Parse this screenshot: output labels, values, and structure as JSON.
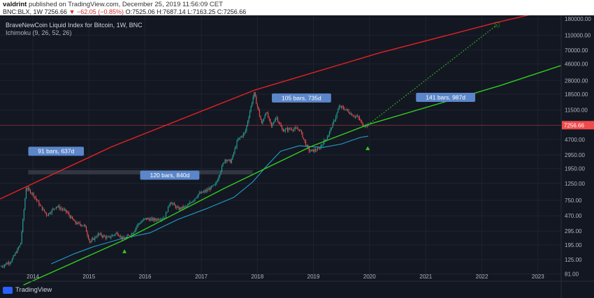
{
  "header": {
    "publisher": "valdrint",
    "published_text": "published on TradingView.com, December 25, 2019 11:56:09 CET",
    "symbol": "BNC:BLX, 1W",
    "last": "7256.66",
    "change": "▼ −62.05 (−0.85%)",
    "o": "O:7525.06",
    "h": "H:7687.14",
    "l": "L:7163.25",
    "c": "C:7256.66"
  },
  "legend": {
    "line1": "BraveNewCoin Liquid Index for Bitcoin, 1W, BNC",
    "line2": "Ichimoku (9, 26, 52, 26)"
  },
  "footer": {
    "brand": "TradingView"
  },
  "colors": {
    "background": "#131722",
    "candle_up": "#26a69a",
    "candle_down": "#ef5350",
    "red_trendline": "#e52222",
    "green_trendline": "#33cc1f",
    "ichimoku_line": "#1f9fc9",
    "annotation_bg": "#5b86c9",
    "price_tag": "#f04b4b"
  },
  "chart_data": {
    "type": "candlestick",
    "y_scale": "log",
    "ylim": [
      65,
      200000
    ],
    "xlim": [
      "2013-06-01",
      "2023-06-01"
    ],
    "x_tick_labels": [
      "2014",
      "2015",
      "2016",
      "2017",
      "2018",
      "2019",
      "2020",
      "2021",
      "2022",
      "2023"
    ],
    "y_tick_labels": [
      {
        "label": "180000.00",
        "value": 180000
      },
      {
        "label": "110000.00",
        "value": 110000
      },
      {
        "label": "70000.00",
        "value": 70000
      },
      {
        "label": "46000.00",
        "value": 46000
      },
      {
        "label": "28000.00",
        "value": 28000
      },
      {
        "label": "18500.00",
        "value": 18500
      },
      {
        "label": "11500.00",
        "value": 11500
      },
      {
        "label": "4700.00",
        "value": 4700
      },
      {
        "label": "2950.00",
        "value": 2950
      },
      {
        "label": "1950.00",
        "value": 1950
      },
      {
        "label": "1250.00",
        "value": 1250
      },
      {
        "label": "750.00",
        "value": 750
      },
      {
        "label": "470.00",
        "value": 470
      },
      {
        "label": "295.00",
        "value": 295
      },
      {
        "label": "195.00",
        "value": 195
      },
      {
        "label": "125.00",
        "value": 125
      },
      {
        "label": "81.00",
        "value": 81
      }
    ],
    "last_price": {
      "label": "7256.66",
      "value": 7256.66
    },
    "price_keypoints": [
      [
        "2013-06-10",
        100
      ],
      [
        "2013-08-20",
        120
      ],
      [
        "2013-10-20",
        200
      ],
      [
        "2013-11-25",
        1100
      ],
      [
        "2014-01-10",
        900
      ],
      [
        "2014-02-20",
        650
      ],
      [
        "2014-04-10",
        480
      ],
      [
        "2014-06-10",
        630
      ],
      [
        "2014-08-10",
        540
      ],
      [
        "2014-10-10",
        380
      ],
      [
        "2014-12-10",
        350
      ],
      [
        "2015-01-15",
        210
      ],
      [
        "2015-03-10",
        270
      ],
      [
        "2015-05-10",
        240
      ],
      [
        "2015-07-10",
        280
      ],
      [
        "2015-08-20",
        230
      ],
      [
        "2015-10-20",
        280
      ],
      [
        "2015-11-20",
        360
      ],
      [
        "2016-01-10",
        430
      ],
      [
        "2016-03-10",
        415
      ],
      [
        "2016-05-15",
        450
      ],
      [
        "2016-06-20",
        720
      ],
      [
        "2016-08-10",
        575
      ],
      [
        "2016-10-10",
        630
      ],
      [
        "2016-12-20",
        900
      ],
      [
        "2017-02-10",
        1000
      ],
      [
        "2017-04-10",
        1200
      ],
      [
        "2017-06-10",
        2600
      ],
      [
        "2017-07-20",
        2400
      ],
      [
        "2017-09-01",
        4600
      ],
      [
        "2017-10-20",
        5800
      ],
      [
        "2017-12-17",
        19200
      ],
      [
        "2018-02-05",
        7500
      ],
      [
        "2018-03-05",
        11000
      ],
      [
        "2018-04-10",
        6900
      ],
      [
        "2018-05-10",
        9500
      ],
      [
        "2018-06-20",
        6200
      ],
      [
        "2018-08-10",
        6500
      ],
      [
        "2018-10-10",
        6400
      ],
      [
        "2018-11-25",
        3800
      ],
      [
        "2018-12-15",
        3300
      ],
      [
        "2019-02-10",
        3500
      ],
      [
        "2019-04-10",
        5200
      ],
      [
        "2019-05-20",
        8000
      ],
      [
        "2019-06-26",
        12800
      ],
      [
        "2019-08-10",
        11500
      ],
      [
        "2019-09-20",
        9800
      ],
      [
        "2019-10-25",
        9200
      ],
      [
        "2019-11-25",
        7300
      ],
      [
        "2019-12-23",
        7256
      ]
    ],
    "red_trendline": [
      [
        "2013-06-01",
        780
      ],
      [
        "2015-06-01",
        3800
      ],
      [
        "2017-12-17",
        21000
      ],
      [
        "2020-03-01",
        64000
      ],
      [
        "2022-04-01",
        160000
      ],
      [
        "2023-03-01",
        230000
      ]
    ],
    "green_trendline": [
      [
        "2013-11-01",
        58
      ],
      [
        "2015-08-15",
        225
      ],
      [
        "2017-06-01",
        1080
      ],
      [
        "2018-12-15",
        3800
      ],
      [
        "2020-01-01",
        7500
      ],
      [
        "2022-05-01",
        24000
      ],
      [
        "2023-06-01",
        44000
      ]
    ],
    "dotted_projection": [
      [
        "2019-12-23",
        7350
      ],
      [
        "2022-04-10",
        150000
      ]
    ],
    "ichimoku_line": [
      [
        "2014-05-01",
        110
      ],
      [
        "2014-10-01",
        150
      ],
      [
        "2015-02-01",
        185
      ],
      [
        "2015-08-01",
        235
      ],
      [
        "2016-02-01",
        280
      ],
      [
        "2016-08-01",
        420
      ],
      [
        "2017-02-01",
        580
      ],
      [
        "2017-08-01",
        820
      ],
      [
        "2017-12-01",
        1300
      ],
      [
        "2018-03-01",
        2100
      ],
      [
        "2018-06-01",
        3300
      ],
      [
        "2018-10-01",
        3900
      ],
      [
        "2019-03-01",
        3700
      ],
      [
        "2019-07-01",
        4100
      ],
      [
        "2019-11-01",
        5000
      ],
      [
        "2019-12-23",
        5200
      ]
    ],
    "annotations": [
      {
        "text": "91 bars, 637d",
        "date": "2014-06-01",
        "value": 3300
      },
      {
        "text": "120 bars, 840d",
        "date": "2016-06-10",
        "value": 1600
      },
      {
        "text": "105 bars, 735d",
        "date": "2018-10-15",
        "value": 16500
      },
      {
        "text": "141 bars, 987d",
        "date": "2021-05-10",
        "value": 16800
      }
    ],
    "markers": [
      {
        "type": "triangle-up",
        "date": "2015-08-20",
        "value": 160
      },
      {
        "type": "triangle-up",
        "date": "2019-12-20",
        "value": 3600
      }
    ],
    "projection_endpoint": {
      "date": "2022-04-10",
      "value": 150000
    },
    "range_bar": {
      "start": "2013-12-01",
      "end": "2017-12-01",
      "value": 1750
    }
  }
}
